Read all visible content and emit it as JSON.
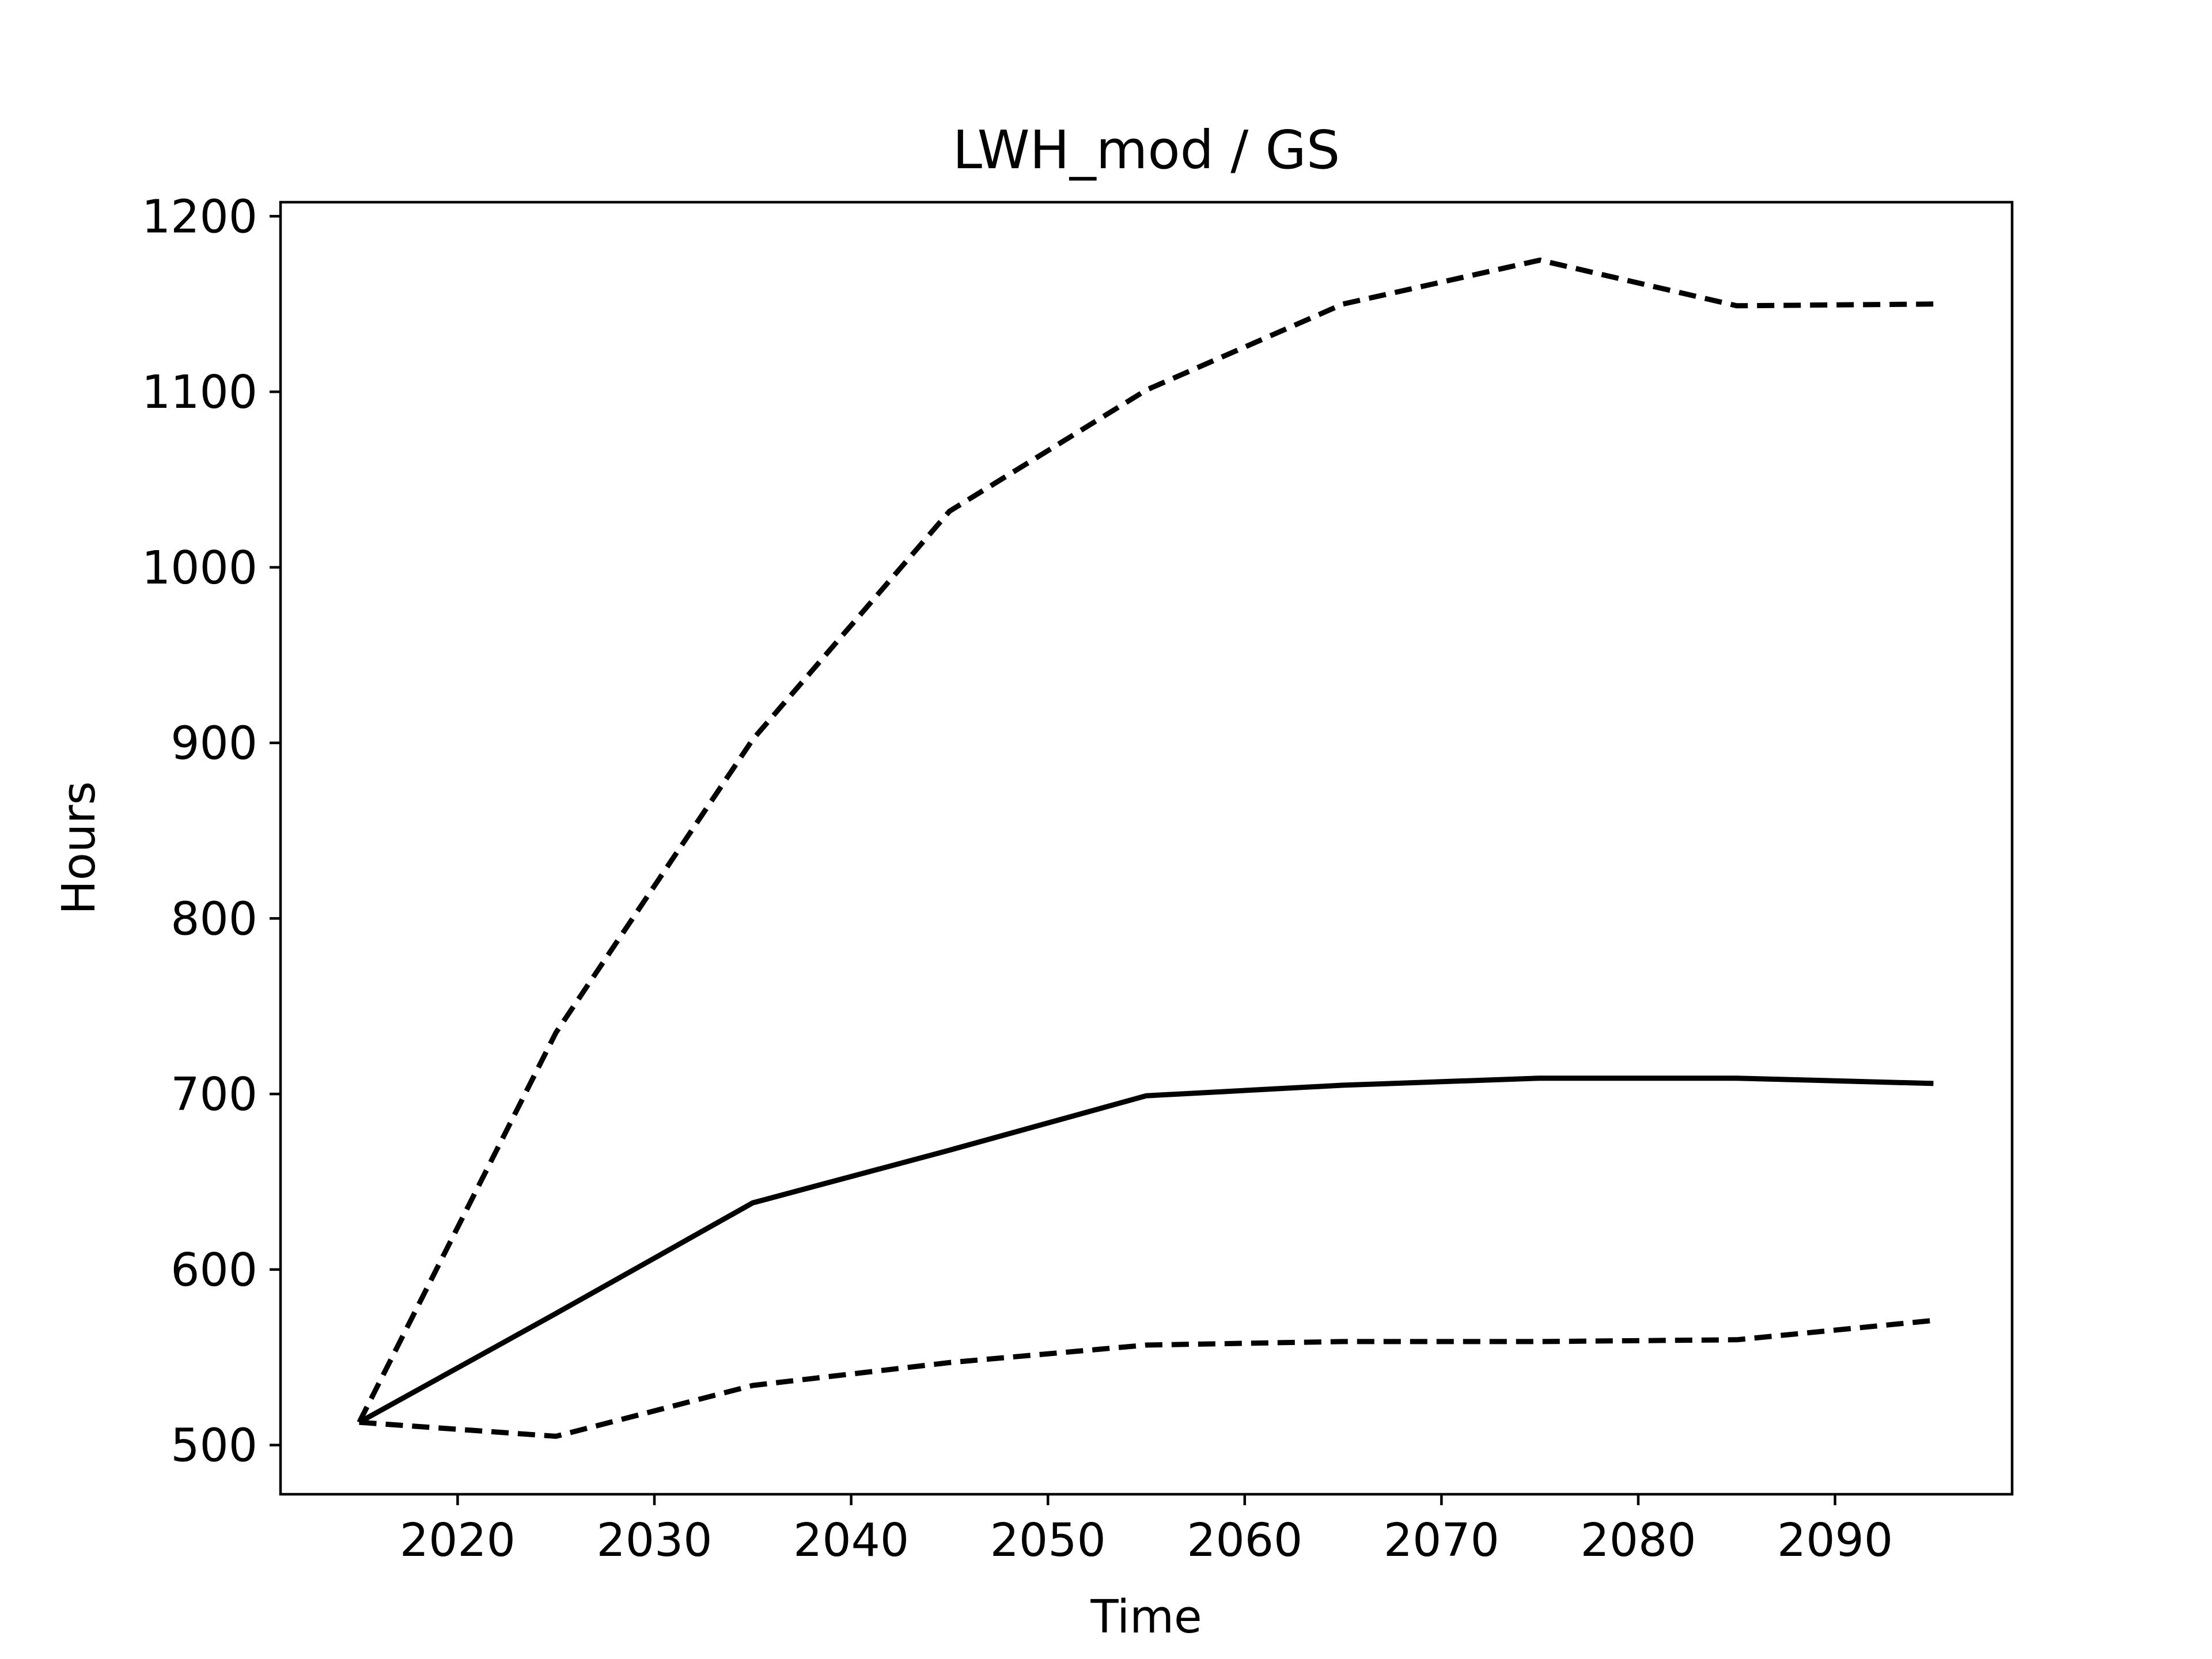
{
  "chart_data": {
    "type": "line",
    "title": "LWH_mod / GS",
    "xlabel": "Time",
    "ylabel": "Hours",
    "xlim": [
      2011,
      2099
    ],
    "ylim": [
      472,
      1208
    ],
    "xticks": [
      2020,
      2030,
      2040,
      2050,
      2060,
      2070,
      2080,
      2090
    ],
    "yticks": [
      500,
      600,
      700,
      800,
      900,
      1000,
      1100,
      1200
    ],
    "grid": false,
    "legend": "none",
    "x": [
      2015,
      2025,
      2035,
      2045,
      2055,
      2065,
      2075,
      2085,
      2095
    ],
    "series": [
      {
        "style": "dashed",
        "color": "#000000",
        "values": [
          513,
          735,
          902,
          1032,
          1101,
          1150,
          1175,
          1149,
          1150
        ]
      },
      {
        "style": "solid",
        "color": "#000000",
        "values": [
          513,
          575,
          638,
          668,
          699,
          705,
          709,
          709,
          706
        ]
      },
      {
        "style": "dashed",
        "color": "#000000",
        "values": [
          513,
          505,
          534,
          547,
          557,
          559,
          559,
          560,
          571
        ]
      }
    ]
  }
}
